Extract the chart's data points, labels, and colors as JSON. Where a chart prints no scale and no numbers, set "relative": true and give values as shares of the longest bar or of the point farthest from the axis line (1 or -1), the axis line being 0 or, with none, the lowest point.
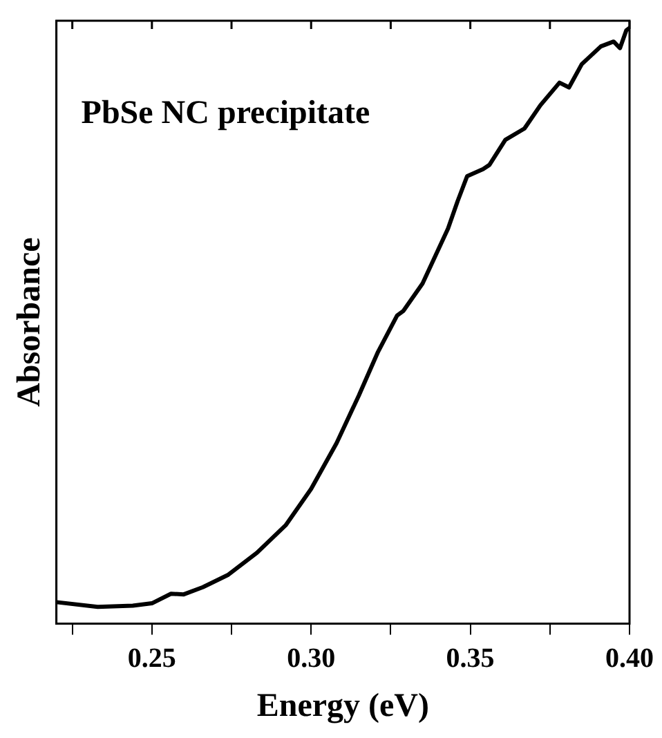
{
  "chart_data": {
    "type": "line",
    "xlabel": "Energy (eV)",
    "ylabel": "Absorbance",
    "relative": true,
    "annotations": [
      "PbSe NC precipitate"
    ],
    "xlim": [
      0.22,
      0.4
    ],
    "xticks": [
      {
        "value": 0.225,
        "label": null
      },
      0.25,
      {
        "value": 0.275,
        "label": null
      },
      {
        "value": 0.3,
        "label": "0.30"
      },
      {
        "value": 0.325,
        "label": null
      },
      0.35,
      {
        "value": 0.375,
        "label": null
      },
      {
        "value": 0.4,
        "label": "0.40"
      }
    ],
    "grid": false,
    "marker": "none",
    "line_style": "solid",
    "series": [
      {
        "color": "#000000",
        "x": [
          0.22,
          0.233,
          0.244,
          0.25,
          0.256,
          0.26,
          0.266,
          0.274,
          0.283,
          0.292,
          0.3,
          0.308,
          0.315,
          0.321,
          0.327,
          0.329,
          0.335,
          0.339,
          0.343,
          0.346,
          0.349,
          0.354,
          0.356,
          0.361,
          0.367,
          0.372,
          0.378,
          0.381,
          0.385,
          0.391,
          0.395,
          0.397,
          0.399,
          0.4
        ],
        "values": [
          0.036,
          0.028,
          0.03,
          0.034,
          0.05,
          0.049,
          0.061,
          0.082,
          0.119,
          0.165,
          0.226,
          0.303,
          0.383,
          0.456,
          0.517,
          0.525,
          0.571,
          0.617,
          0.663,
          0.709,
          0.751,
          0.763,
          0.77,
          0.812,
          0.831,
          0.87,
          0.908,
          0.9,
          0.939,
          0.969,
          0.977,
          0.966,
          0.996,
          1.0
        ]
      }
    ]
  }
}
